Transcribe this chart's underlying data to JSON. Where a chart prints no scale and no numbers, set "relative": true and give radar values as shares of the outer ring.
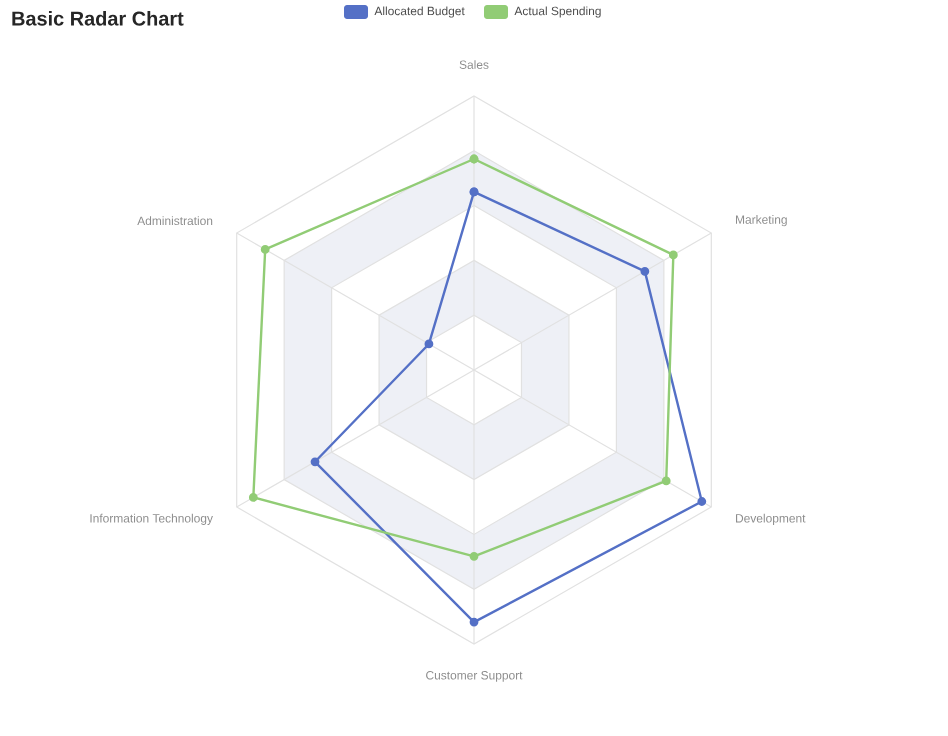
{
  "chart_data": {
    "type": "radar",
    "title": "Basic Radar Chart",
    "relative": true,
    "grid": true,
    "legend": "top",
    "marker": "circle",
    "categories": [
      "Sales",
      "Marketing",
      "Development",
      "Customer Support",
      "Information Technology",
      "Administration"
    ],
    "series": [
      {
        "name": "Allocated Budget",
        "color": "#5470c6",
        "values": [
          0.65,
          0.72,
          0.96,
          0.92,
          0.67,
          0.19
        ]
      },
      {
        "name": "Actual Spending",
        "color": "#91cc75",
        "values": [
          0.77,
          0.84,
          0.81,
          0.68,
          0.93,
          0.88
        ]
      }
    ]
  }
}
